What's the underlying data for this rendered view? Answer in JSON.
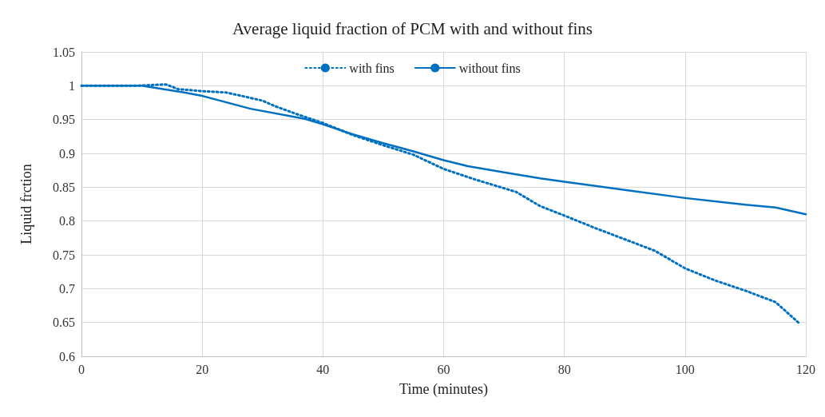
{
  "chart_data": {
    "type": "line",
    "title": "Average liquid fraction of PCM with and without fins",
    "xlabel": "Time (minutes)",
    "ylabel": "Liquid frction",
    "xlim": [
      0,
      120
    ],
    "xticks": [
      0,
      20,
      40,
      60,
      80,
      100,
      120
    ],
    "ylim": [
      0.6,
      1.05
    ],
    "yticks": [
      0.6,
      0.65,
      0.7,
      0.75,
      0.8,
      0.85,
      0.9,
      0.95,
      1,
      1.05
    ],
    "grid": true,
    "legend": "top",
    "marker": "none",
    "series": [
      {
        "name": "with fins",
        "color": "#0070c0",
        "line_style": "dotted",
        "x": [
          0,
          9,
          14,
          16,
          20,
          24,
          30,
          32,
          36,
          40,
          45,
          50,
          55,
          60,
          65,
          72,
          76,
          80,
          85,
          90,
          95,
          100,
          105,
          110,
          115,
          119
        ],
        "values": [
          1,
          1,
          1.002,
          0.995,
          0.992,
          0.99,
          0.978,
          0.97,
          0.957,
          0.945,
          0.927,
          0.912,
          0.898,
          0.877,
          0.862,
          0.843,
          0.822,
          0.808,
          0.79,
          0.773,
          0.756,
          0.73,
          0.712,
          0.697,
          0.68,
          0.648
        ]
      },
      {
        "name": "without fins",
        "color": "#0070c0",
        "line_style": "solid",
        "x": [
          0,
          10,
          17,
          20,
          28,
          37,
          40,
          45,
          50,
          55,
          60,
          64,
          70,
          76,
          80,
          90,
          100,
          110,
          115,
          120
        ],
        "values": [
          1,
          1,
          0.99,
          0.985,
          0.966,
          0.951,
          0.943,
          0.928,
          0.915,
          0.903,
          0.89,
          0.881,
          0.872,
          0.863,
          0.858,
          0.846,
          0.834,
          0.824,
          0.82,
          0.81
        ]
      }
    ]
  }
}
